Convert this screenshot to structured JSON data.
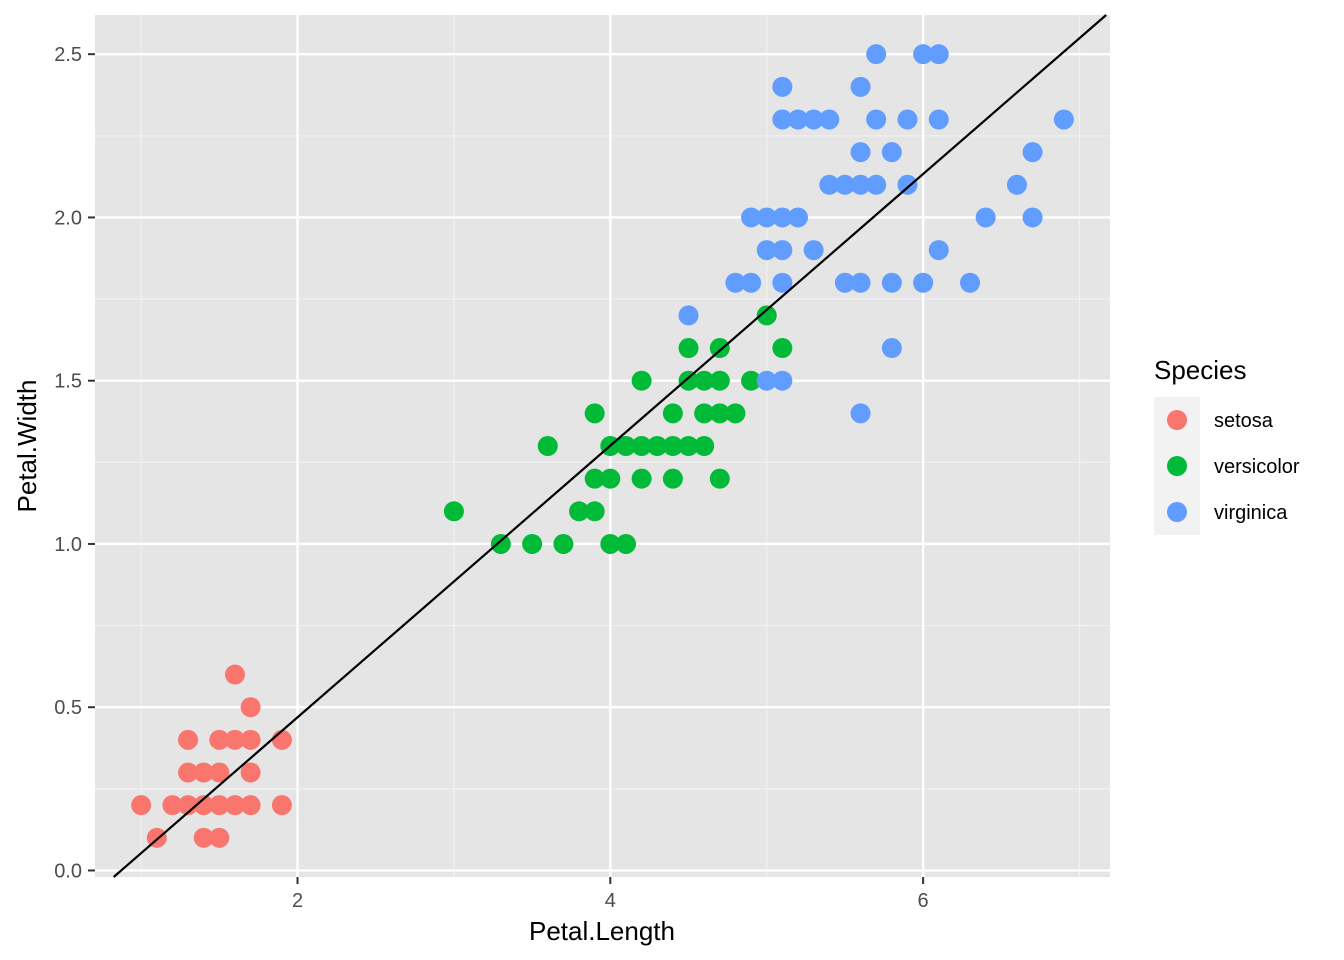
{
  "chart_data": {
    "type": "scatter",
    "xlabel": "Petal.Length",
    "ylabel": "Petal.Width",
    "xlim": [
      0.705,
      7.195
    ],
    "ylim": [
      -0.02,
      2.62
    ],
    "x_ticks": [
      2,
      4,
      6
    ],
    "x_tick_labels": [
      "2",
      "4",
      "6"
    ],
    "y_ticks": [
      0,
      0.5,
      1,
      1.5,
      2,
      2.5
    ],
    "y_tick_labels": [
      "0.0",
      "0.5",
      "1.0",
      "1.5",
      "2.0",
      "2.5"
    ],
    "grid": true,
    "legend": {
      "title": "Species",
      "position": "right"
    },
    "fit_line": {
      "intercept": -0.363,
      "slope": 0.416,
      "color": "#000000"
    },
    "series": [
      {
        "name": "setosa",
        "color": "#F8766D",
        "points": [
          [
            1.0,
            0.2
          ],
          [
            1.1,
            0.1
          ],
          [
            1.2,
            0.2
          ],
          [
            1.3,
            0.2
          ],
          [
            1.3,
            0.3
          ],
          [
            1.3,
            0.4
          ],
          [
            1.4,
            0.1
          ],
          [
            1.4,
            0.2
          ],
          [
            1.4,
            0.3
          ],
          [
            1.5,
            0.1
          ],
          [
            1.5,
            0.2
          ],
          [
            1.5,
            0.3
          ],
          [
            1.5,
            0.4
          ],
          [
            1.6,
            0.2
          ],
          [
            1.6,
            0.4
          ],
          [
            1.6,
            0.6
          ],
          [
            1.7,
            0.2
          ],
          [
            1.7,
            0.3
          ],
          [
            1.7,
            0.4
          ],
          [
            1.7,
            0.5
          ],
          [
            1.9,
            0.2
          ],
          [
            1.9,
            0.4
          ]
        ]
      },
      {
        "name": "versicolor",
        "color": "#00BA38",
        "points": [
          [
            3.0,
            1.1
          ],
          [
            3.3,
            1.0
          ],
          [
            3.5,
            1.0
          ],
          [
            3.6,
            1.3
          ],
          [
            3.7,
            1.0
          ],
          [
            3.8,
            1.1
          ],
          [
            3.9,
            1.1
          ],
          [
            3.9,
            1.2
          ],
          [
            3.9,
            1.4
          ],
          [
            4.0,
            1.0
          ],
          [
            4.0,
            1.2
          ],
          [
            4.0,
            1.3
          ],
          [
            4.1,
            1.0
          ],
          [
            4.1,
            1.3
          ],
          [
            4.2,
            1.2
          ],
          [
            4.2,
            1.3
          ],
          [
            4.2,
            1.5
          ],
          [
            4.3,
            1.3
          ],
          [
            4.4,
            1.2
          ],
          [
            4.4,
            1.3
          ],
          [
            4.4,
            1.4
          ],
          [
            4.5,
            1.3
          ],
          [
            4.5,
            1.5
          ],
          [
            4.5,
            1.6
          ],
          [
            4.6,
            1.3
          ],
          [
            4.6,
            1.4
          ],
          [
            4.6,
            1.5
          ],
          [
            4.7,
            1.2
          ],
          [
            4.7,
            1.4
          ],
          [
            4.7,
            1.5
          ],
          [
            4.7,
            1.6
          ],
          [
            4.8,
            1.4
          ],
          [
            4.9,
            1.5
          ],
          [
            5.0,
            1.7
          ],
          [
            5.1,
            1.6
          ]
        ]
      },
      {
        "name": "virginica",
        "color": "#619CFF",
        "points": [
          [
            4.5,
            1.7
          ],
          [
            4.8,
            1.8
          ],
          [
            4.9,
            1.8
          ],
          [
            4.9,
            2.0
          ],
          [
            5.0,
            1.5
          ],
          [
            5.0,
            1.9
          ],
          [
            5.0,
            2.0
          ],
          [
            5.1,
            1.5
          ],
          [
            5.1,
            1.8
          ],
          [
            5.1,
            1.9
          ],
          [
            5.1,
            2.0
          ],
          [
            5.1,
            2.3
          ],
          [
            5.1,
            2.4
          ],
          [
            5.2,
            2.0
          ],
          [
            5.2,
            2.3
          ],
          [
            5.3,
            1.9
          ],
          [
            5.3,
            2.3
          ],
          [
            5.4,
            2.1
          ],
          [
            5.4,
            2.3
          ],
          [
            5.5,
            1.8
          ],
          [
            5.5,
            2.1
          ],
          [
            5.6,
            1.4
          ],
          [
            5.6,
            1.8
          ],
          [
            5.6,
            2.1
          ],
          [
            5.6,
            2.2
          ],
          [
            5.6,
            2.4
          ],
          [
            5.7,
            2.1
          ],
          [
            5.7,
            2.3
          ],
          [
            5.7,
            2.5
          ],
          [
            5.8,
            1.6
          ],
          [
            5.8,
            1.8
          ],
          [
            5.8,
            2.2
          ],
          [
            5.9,
            2.1
          ],
          [
            5.9,
            2.3
          ],
          [
            6.0,
            1.8
          ],
          [
            6.0,
            2.5
          ],
          [
            6.1,
            1.9
          ],
          [
            6.1,
            2.3
          ],
          [
            6.1,
            2.5
          ],
          [
            6.3,
            1.8
          ],
          [
            6.4,
            2.0
          ],
          [
            6.6,
            2.1
          ],
          [
            6.7,
            2.0
          ],
          [
            6.7,
            2.2
          ],
          [
            6.9,
            2.3
          ]
        ]
      }
    ]
  }
}
